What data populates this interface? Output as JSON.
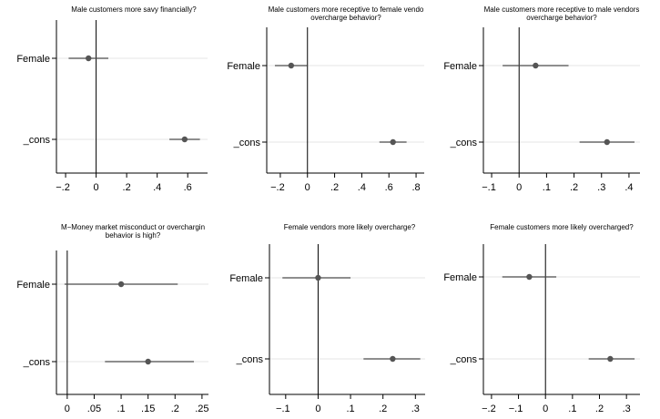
{
  "chart_data": [
    {
      "type": "scatter",
      "title": [
        "Male customers more savy financially?"
      ],
      "categories": [
        "Female",
        "_cons"
      ],
      "estimates": [
        -0.05,
        0.58
      ],
      "ci_low": [
        -0.18,
        0.48
      ],
      "ci_high": [
        0.08,
        0.68
      ],
      "xticks": [
        -0.2,
        0,
        0.2,
        0.4,
        0.6
      ],
      "xtick_labels": [
        ".2",
        "0",
        ".2",
        ".4",
        ".6"
      ],
      "xlim": [
        -0.26,
        0.73
      ],
      "grid": true
    },
    {
      "type": "scatter",
      "title": [
        "Male customers more receptive to female vendo",
        "overcharge behavior?"
      ],
      "categories": [
        "Female",
        "_cons"
      ],
      "estimates": [
        -0.12,
        0.63
      ],
      "ci_low": [
        -0.24,
        0.53
      ],
      "ci_high": [
        0.0,
        0.73
      ],
      "xticks": [
        -0.2,
        0,
        0.2,
        0.4,
        0.6,
        0.8
      ],
      "xtick_labels": [
        ".2",
        "0",
        ".2",
        ".4",
        ".6",
        ".8"
      ],
      "xlim": [
        -0.3,
        0.86
      ],
      "grid": true
    },
    {
      "type": "scatter",
      "title": [
        "Male customers more receptive to male vendors",
        "overcharge behavior?"
      ],
      "categories": [
        "Female",
        "_cons"
      ],
      "estimates": [
        0.06,
        0.32
      ],
      "ci_low": [
        -0.06,
        0.22
      ],
      "ci_high": [
        0.18,
        0.42
      ],
      "xticks": [
        -0.1,
        0,
        0.1,
        0.2,
        0.3,
        0.4
      ],
      "xtick_labels": [
        ".1",
        "0",
        ".1",
        ".2",
        ".3",
        ".4"
      ],
      "xlim": [
        -0.13,
        0.44
      ],
      "grid": true
    },
    {
      "type": "scatter",
      "title": [
        "M−Money market misconduct or overchargin",
        "behavior is high?"
      ],
      "categories": [
        "Female",
        "_cons"
      ],
      "estimates": [
        0.1,
        0.15
      ],
      "ci_low": [
        -0.005,
        0.07
      ],
      "ci_high": [
        0.205,
        0.235
      ],
      "xticks": [
        0,
        0.05,
        0.1,
        0.15,
        0.2,
        0.25
      ],
      "xtick_labels": [
        "0",
        ".05",
        ".1",
        ".15",
        ".2",
        ".25"
      ],
      "xlim": [
        -0.02,
        0.262
      ],
      "grid": true
    },
    {
      "type": "scatter",
      "title": [
        "Female vendors more likely overcharge?"
      ],
      "categories": [
        "Female",
        "_cons"
      ],
      "estimates": [
        0.0,
        0.23
      ],
      "ci_low": [
        -0.11,
        0.14
      ],
      "ci_high": [
        0.1,
        0.315
      ],
      "xticks": [
        -0.1,
        0,
        0.1,
        0.2,
        0.3
      ],
      "xtick_labels": [
        ".1",
        "0",
        ".1",
        ".2",
        ".3"
      ],
      "xlim": [
        -0.15,
        0.33
      ],
      "grid": true
    },
    {
      "type": "scatter",
      "title": [
        "Female customers more likely overcharged?"
      ],
      "categories": [
        "Female",
        "_cons"
      ],
      "estimates": [
        -0.06,
        0.24
      ],
      "ci_low": [
        -0.16,
        0.16
      ],
      "ci_high": [
        0.04,
        0.33
      ],
      "xticks": [
        -0.2,
        -0.1,
        0,
        0.1,
        0.2,
        0.3
      ],
      "xtick_labels": [
        ".2",
        ".1",
        "0",
        ".1",
        ".2",
        ".3"
      ],
      "xlim": [
        -0.23,
        0.35
      ],
      "grid": true
    }
  ]
}
